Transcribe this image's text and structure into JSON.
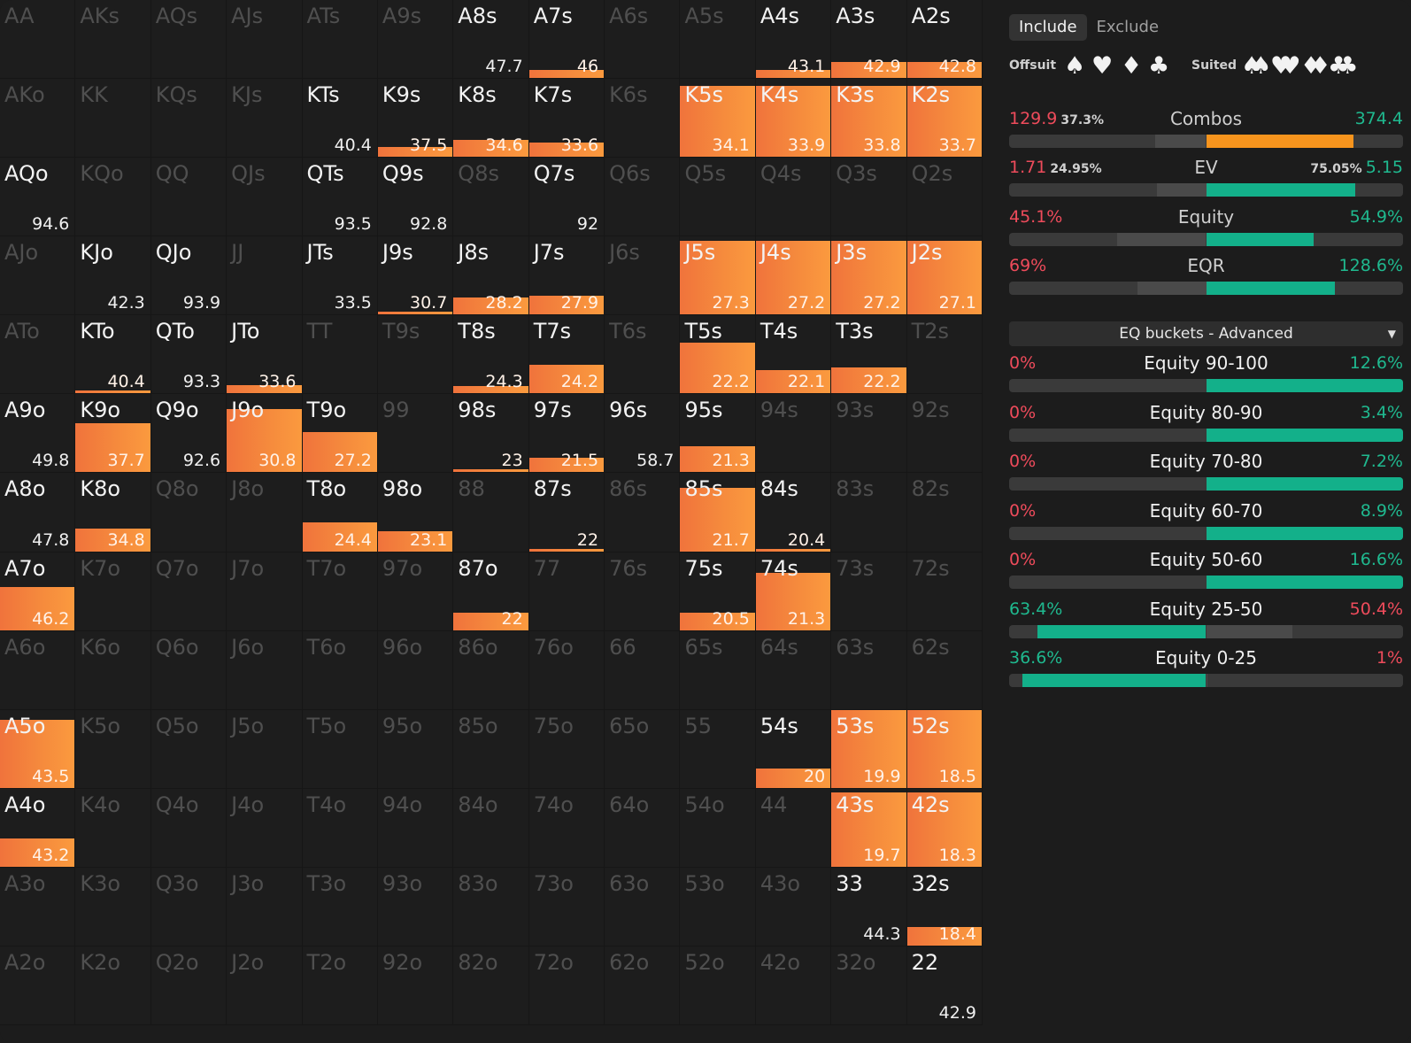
{
  "colors": {
    "fill": "#f58a3d",
    "orange": "#f7941d",
    "teal": "#13b08a",
    "red": "#ee4b5b",
    "green": "#1fb98f",
    "barbg": "#3a3a3a",
    "barmid": "#4a4a4a"
  },
  "grid": [
    [
      {
        "n": "AA",
        "v": "",
        "f": 0
      },
      {
        "n": "AKs",
        "v": "",
        "f": 0
      },
      {
        "n": "AQs",
        "v": "",
        "f": 0
      },
      {
        "n": "AJs",
        "v": "",
        "f": 0
      },
      {
        "n": "ATs",
        "v": "",
        "f": 0
      },
      {
        "n": "A9s",
        "v": "",
        "f": 0
      },
      {
        "n": "A8s",
        "v": "47.7",
        "f": 0
      },
      {
        "n": "A7s",
        "v": "46",
        "f": 0.1
      },
      {
        "n": "A6s",
        "v": "",
        "f": 0
      },
      {
        "n": "A5s",
        "v": "",
        "f": 0
      },
      {
        "n": "A4s",
        "v": "43.1",
        "f": 0.1
      },
      {
        "n": "A3s",
        "v": "42.9",
        "f": 0.2
      },
      {
        "n": "A2s",
        "v": "42.8",
        "f": 0.2
      }
    ],
    [
      {
        "n": "AKo",
        "v": "",
        "f": 0
      },
      {
        "n": "KK",
        "v": "",
        "f": 0
      },
      {
        "n": "KQs",
        "v": "",
        "f": 0
      },
      {
        "n": "KJs",
        "v": "",
        "f": 0
      },
      {
        "n": "KTs",
        "v": "40.4",
        "f": 0
      },
      {
        "n": "K9s",
        "v": "37.5",
        "f": 0.12
      },
      {
        "n": "K8s",
        "v": "34.6",
        "f": 0.22
      },
      {
        "n": "K7s",
        "v": "33.6",
        "f": 0.18
      },
      {
        "n": "K6s",
        "v": "",
        "f": 0
      },
      {
        "n": "K5s",
        "v": "34.1",
        "f": 0.9
      },
      {
        "n": "K4s",
        "v": "33.9",
        "f": 0.9
      },
      {
        "n": "K3s",
        "v": "33.8",
        "f": 0.9
      },
      {
        "n": "K2s",
        "v": "33.7",
        "f": 0.9
      }
    ],
    [
      {
        "n": "AQo",
        "v": "94.6",
        "f": 0
      },
      {
        "n": "KQo",
        "v": "",
        "f": 0
      },
      {
        "n": "QQ",
        "v": "",
        "f": 0
      },
      {
        "n": "QJs",
        "v": "",
        "f": 0
      },
      {
        "n": "QTs",
        "v": "93.5",
        "f": 0
      },
      {
        "n": "Q9s",
        "v": "92.8",
        "f": 0
      },
      {
        "n": "Q8s",
        "v": "",
        "f": 0
      },
      {
        "n": "Q7s",
        "v": "92",
        "f": 0
      },
      {
        "n": "Q6s",
        "v": "",
        "f": 0
      },
      {
        "n": "Q5s",
        "v": "",
        "f": 0
      },
      {
        "n": "Q4s",
        "v": "",
        "f": 0
      },
      {
        "n": "Q3s",
        "v": "",
        "f": 0
      },
      {
        "n": "Q2s",
        "v": "",
        "f": 0
      }
    ],
    [
      {
        "n": "AJo",
        "v": "",
        "f": 0
      },
      {
        "n": "KJo",
        "v": "42.3",
        "f": 0
      },
      {
        "n": "QJo",
        "v": "93.9",
        "f": 0
      },
      {
        "n": "JJ",
        "v": "",
        "f": 0
      },
      {
        "n": "JTs",
        "v": "33.5",
        "f": 0
      },
      {
        "n": "J9s",
        "v": "30.7",
        "f": 0.02
      },
      {
        "n": "J8s",
        "v": "28.2",
        "f": 0.22
      },
      {
        "n": "J7s",
        "v": "27.9",
        "f": 0.24
      },
      {
        "n": "J6s",
        "v": "",
        "f": 0
      },
      {
        "n": "J5s",
        "v": "27.3",
        "f": 0.93
      },
      {
        "n": "J4s",
        "v": "27.2",
        "f": 0.93
      },
      {
        "n": "J3s",
        "v": "27.2",
        "f": 0.93
      },
      {
        "n": "J2s",
        "v": "27.1",
        "f": 0.93
      }
    ],
    [
      {
        "n": "ATo",
        "v": "",
        "f": 0
      },
      {
        "n": "KTo",
        "v": "40.4",
        "f": 0.01
      },
      {
        "n": "QTo",
        "v": "93.3",
        "f": 0
      },
      {
        "n": "JTo",
        "v": "33.6",
        "f": 0.11
      },
      {
        "n": "TT",
        "v": "",
        "f": 0
      },
      {
        "n": "T9s",
        "v": "",
        "f": 0
      },
      {
        "n": "T8s",
        "v": "24.3",
        "f": 0.09
      },
      {
        "n": "T7s",
        "v": "24.2",
        "f": 0.36
      },
      {
        "n": "T6s",
        "v": "",
        "f": 0
      },
      {
        "n": "T5s",
        "v": "22.2",
        "f": 0.64
      },
      {
        "n": "T4s",
        "v": "22.1",
        "f": 0.3
      },
      {
        "n": "T3s",
        "v": "22.2",
        "f": 0.33
      },
      {
        "n": "T2s",
        "v": "",
        "f": 0
      }
    ],
    [
      {
        "n": "A9o",
        "v": "49.8",
        "f": 0
      },
      {
        "n": "K9o",
        "v": "37.7",
        "f": 0.62
      },
      {
        "n": "Q9o",
        "v": "92.6",
        "f": 0
      },
      {
        "n": "J9o",
        "v": "30.8",
        "f": 0.8
      },
      {
        "n": "T9o",
        "v": "27.2",
        "f": 0.51
      },
      {
        "n": "99",
        "v": "",
        "f": 0
      },
      {
        "n": "98s",
        "v": "23",
        "f": 0.03
      },
      {
        "n": "97s",
        "v": "21.5",
        "f": 0.19
      },
      {
        "n": "96s",
        "v": "58.7",
        "f": 0
      },
      {
        "n": "95s",
        "v": "21.3",
        "f": 0.33
      },
      {
        "n": "94s",
        "v": "",
        "f": 0
      },
      {
        "n": "93s",
        "v": "",
        "f": 0
      },
      {
        "n": "92s",
        "v": "",
        "f": 0
      }
    ],
    [
      {
        "n": "A8o",
        "v": "47.8",
        "f": 0
      },
      {
        "n": "K8o",
        "v": "34.8",
        "f": 0.29
      },
      {
        "n": "Q8o",
        "v": "",
        "f": 0
      },
      {
        "n": "J8o",
        "v": "",
        "f": 0
      },
      {
        "n": "T8o",
        "v": "24.4",
        "f": 0.37
      },
      {
        "n": "98o",
        "v": "23.1",
        "f": 0.25
      },
      {
        "n": "88",
        "v": "",
        "f": 0
      },
      {
        "n": "87s",
        "v": "22",
        "f": 0.03
      },
      {
        "n": "86s",
        "v": "",
        "f": 0
      },
      {
        "n": "85s",
        "v": "21.7",
        "f": 0.8
      },
      {
        "n": "84s",
        "v": "20.4",
        "f": 0.03
      },
      {
        "n": "83s",
        "v": "",
        "f": 0
      },
      {
        "n": "82s",
        "v": "",
        "f": 0
      }
    ],
    [
      {
        "n": "A7o",
        "v": "46.2",
        "f": 0.55
      },
      {
        "n": "K7o",
        "v": "",
        "f": 0
      },
      {
        "n": "Q7o",
        "v": "",
        "f": 0
      },
      {
        "n": "J7o",
        "v": "",
        "f": 0
      },
      {
        "n": "T7o",
        "v": "",
        "f": 0
      },
      {
        "n": "97o",
        "v": "",
        "f": 0
      },
      {
        "n": "87o",
        "v": "22",
        "f": 0.22
      },
      {
        "n": "77",
        "v": "",
        "f": 0
      },
      {
        "n": "76s",
        "v": "",
        "f": 0
      },
      {
        "n": "75s",
        "v": "20.5",
        "f": 0.22
      },
      {
        "n": "74s",
        "v": "21.3",
        "f": 0.72
      },
      {
        "n": "73s",
        "v": "",
        "f": 0
      },
      {
        "n": "72s",
        "v": "",
        "f": 0
      }
    ],
    [
      {
        "n": "A6o",
        "v": "",
        "f": 0
      },
      {
        "n": "K6o",
        "v": "",
        "f": 0
      },
      {
        "n": "Q6o",
        "v": "",
        "f": 0
      },
      {
        "n": "J6o",
        "v": "",
        "f": 0
      },
      {
        "n": "T6o",
        "v": "",
        "f": 0
      },
      {
        "n": "96o",
        "v": "",
        "f": 0
      },
      {
        "n": "86o",
        "v": "",
        "f": 0
      },
      {
        "n": "76o",
        "v": "",
        "f": 0
      },
      {
        "n": "66",
        "v": "",
        "f": 0
      },
      {
        "n": "65s",
        "v": "",
        "f": 0
      },
      {
        "n": "64s",
        "v": "",
        "f": 0
      },
      {
        "n": "63s",
        "v": "",
        "f": 0
      },
      {
        "n": "62s",
        "v": "",
        "f": 0
      }
    ],
    [
      {
        "n": "A5o",
        "v": "43.5",
        "f": 0.86
      },
      {
        "n": "K5o",
        "v": "",
        "f": 0
      },
      {
        "n": "Q5o",
        "v": "",
        "f": 0
      },
      {
        "n": "J5o",
        "v": "",
        "f": 0
      },
      {
        "n": "T5o",
        "v": "",
        "f": 0
      },
      {
        "n": "95o",
        "v": "",
        "f": 0
      },
      {
        "n": "85o",
        "v": "",
        "f": 0
      },
      {
        "n": "75o",
        "v": "",
        "f": 0
      },
      {
        "n": "65o",
        "v": "",
        "f": 0
      },
      {
        "n": "55",
        "v": "",
        "f": 0
      },
      {
        "n": "54s",
        "v": "20",
        "f": 0.24
      },
      {
        "n": "53s",
        "v": "19.9",
        "f": 0.98
      },
      {
        "n": "52s",
        "v": "18.5",
        "f": 0.98
      }
    ],
    [
      {
        "n": "A4o",
        "v": "43.2",
        "f": 0.36
      },
      {
        "n": "K4o",
        "v": "",
        "f": 0
      },
      {
        "n": "Q4o",
        "v": "",
        "f": 0
      },
      {
        "n": "J4o",
        "v": "",
        "f": 0
      },
      {
        "n": "T4o",
        "v": "",
        "f": 0
      },
      {
        "n": "94o",
        "v": "",
        "f": 0
      },
      {
        "n": "84o",
        "v": "",
        "f": 0
      },
      {
        "n": "74o",
        "v": "",
        "f": 0
      },
      {
        "n": "64o",
        "v": "",
        "f": 0
      },
      {
        "n": "54o",
        "v": "",
        "f": 0
      },
      {
        "n": "44",
        "v": "",
        "f": 0
      },
      {
        "n": "43s",
        "v": "19.7",
        "f": 0.94
      },
      {
        "n": "42s",
        "v": "18.3",
        "f": 0.94
      }
    ],
    [
      {
        "n": "A3o",
        "v": "",
        "f": 0
      },
      {
        "n": "K3o",
        "v": "",
        "f": 0
      },
      {
        "n": "Q3o",
        "v": "",
        "f": 0
      },
      {
        "n": "J3o",
        "v": "",
        "f": 0
      },
      {
        "n": "T3o",
        "v": "",
        "f": 0
      },
      {
        "n": "93o",
        "v": "",
        "f": 0
      },
      {
        "n": "83o",
        "v": "",
        "f": 0
      },
      {
        "n": "73o",
        "v": "",
        "f": 0
      },
      {
        "n": "63o",
        "v": "",
        "f": 0
      },
      {
        "n": "53o",
        "v": "",
        "f": 0
      },
      {
        "n": "43o",
        "v": "",
        "f": 0
      },
      {
        "n": "33",
        "v": "44.3",
        "f": 0
      },
      {
        "n": "32s",
        "v": "18.4",
        "f": 0.24
      }
    ],
    [
      {
        "n": "A2o",
        "v": "",
        "f": 0
      },
      {
        "n": "K2o",
        "v": "",
        "f": 0
      },
      {
        "n": "Q2o",
        "v": "",
        "f": 0
      },
      {
        "n": "J2o",
        "v": "",
        "f": 0
      },
      {
        "n": "T2o",
        "v": "",
        "f": 0
      },
      {
        "n": "92o",
        "v": "",
        "f": 0
      },
      {
        "n": "82o",
        "v": "",
        "f": 0
      },
      {
        "n": "72o",
        "v": "",
        "f": 0
      },
      {
        "n": "62o",
        "v": "",
        "f": 0
      },
      {
        "n": "52o",
        "v": "",
        "f": 0
      },
      {
        "n": "42o",
        "v": "",
        "f": 0
      },
      {
        "n": "32o",
        "v": "",
        "f": 0
      },
      {
        "n": "22",
        "v": "42.9",
        "f": 0
      }
    ]
  ],
  "panel": {
    "tabs": [
      "Include",
      "Exclude"
    ],
    "offsuit_label": "Offsuit",
    "suited_label": "Suited",
    "suit_icons": [
      "spade-icon",
      "heart-icon",
      "diamond-icon",
      "club-icon"
    ],
    "stats": [
      {
        "title": "Combos",
        "left": "129.9",
        "left_small": "37.3%",
        "right": "374.4",
        "right_small": "",
        "bar_color": "orange",
        "bar_start": 0.5,
        "bar_end": 0.875,
        "mid_start": 0.37
      },
      {
        "title": "EV",
        "left": "1.71",
        "left_small": "24.95%",
        "right": "5.15",
        "right_small": "75.05%",
        "bar_color": "teal",
        "bar_start": 0.5,
        "bar_end": 0.878,
        "mid_start": 0.375
      },
      {
        "title": "Equity",
        "left": "45.1%",
        "left_small": "",
        "right": "54.9%",
        "right_small": "",
        "bar_color": "teal",
        "bar_start": 0.5,
        "bar_end": 0.773,
        "mid_start": 0.274
      },
      {
        "title": "EQR",
        "left": "69%",
        "left_small": "",
        "right": "128.6%",
        "right_small": "",
        "bar_color": "teal",
        "bar_start": 0.5,
        "bar_end": 0.827,
        "mid_start": 0.325
      }
    ],
    "dropdown": "EQ buckets - Advanced",
    "buckets": [
      {
        "title": "Equity 90-100",
        "left": "0%",
        "right": "12.6%",
        "left_val": 0,
        "right_val": 12.6
      },
      {
        "title": "Equity 80-90",
        "left": "0%",
        "right": "3.4%",
        "left_val": 0,
        "right_val": 3.4
      },
      {
        "title": "Equity 70-80",
        "left": "0%",
        "right": "7.2%",
        "left_val": 0,
        "right_val": 7.2
      },
      {
        "title": "Equity 60-70",
        "left": "0%",
        "right": "8.9%",
        "left_val": 0,
        "right_val": 8.9
      },
      {
        "title": "Equity 50-60",
        "left": "0%",
        "right": "16.6%",
        "left_val": 0,
        "right_val": 16.6
      },
      {
        "title": "Equity 25-50",
        "left": "63.4%",
        "right": "50.4%",
        "left_val": 63.4,
        "right_val": 50.4
      },
      {
        "title": "Equity 0-25",
        "left": "36.6%",
        "right": "1%",
        "left_val": 36.6,
        "right_val": 1
      }
    ]
  }
}
